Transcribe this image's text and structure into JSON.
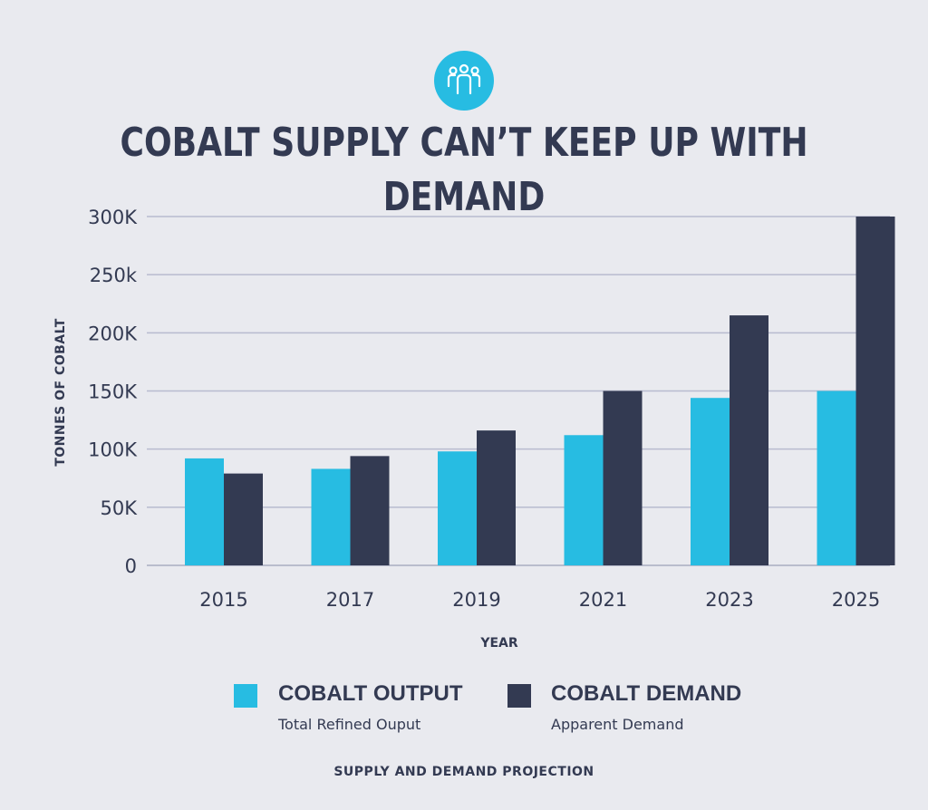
{
  "colors": {
    "background": "#e9eaef",
    "accent": "#27bce2",
    "dark": "#333a52",
    "grid": "#b8bbcf"
  },
  "header": {
    "icon": "people-icon",
    "title": "COBALT SUPPLY CAN’T KEEP UP WITH DEMAND"
  },
  "chart_data": {
    "type": "bar",
    "title": "COBALT SUPPLY CAN’T KEEP UP WITH DEMAND",
    "xlabel": "YEAR",
    "ylabel": "TONNES OF COBALT",
    "categories": [
      "2015",
      "2017",
      "2019",
      "2021",
      "2023",
      "2025"
    ],
    "series": [
      {
        "name": "COBALT OUTPUT",
        "color": "#27bce2",
        "values": [
          92000,
          83000,
          98000,
          112000,
          144000,
          150000
        ]
      },
      {
        "name": "COBALT DEMAND",
        "color": "#333a52",
        "values": [
          79000,
          94000,
          116000,
          150000,
          215000,
          300000
        ]
      }
    ],
    "ylim": [
      0,
      300000
    ],
    "yticks": [
      {
        "value": 0,
        "label": "0"
      },
      {
        "value": 50000,
        "label": "50K"
      },
      {
        "value": 100000,
        "label": "100K"
      },
      {
        "value": 150000,
        "label": "150K"
      },
      {
        "value": 200000,
        "label": "200K"
      },
      {
        "value": 250000,
        "label": "250k"
      },
      {
        "value": 300000,
        "label": "300K"
      }
    ],
    "grid": true,
    "legend_position": "bottom"
  },
  "legend": [
    {
      "name": "COBALT OUTPUT",
      "subtitle": "Total Refined Ouput",
      "color": "#27bce2"
    },
    {
      "name": "COBALT DEMAND",
      "subtitle": "Apparent Demand",
      "color": "#333a52"
    }
  ],
  "caption": "SUPPLY AND DEMAND PROJECTION"
}
